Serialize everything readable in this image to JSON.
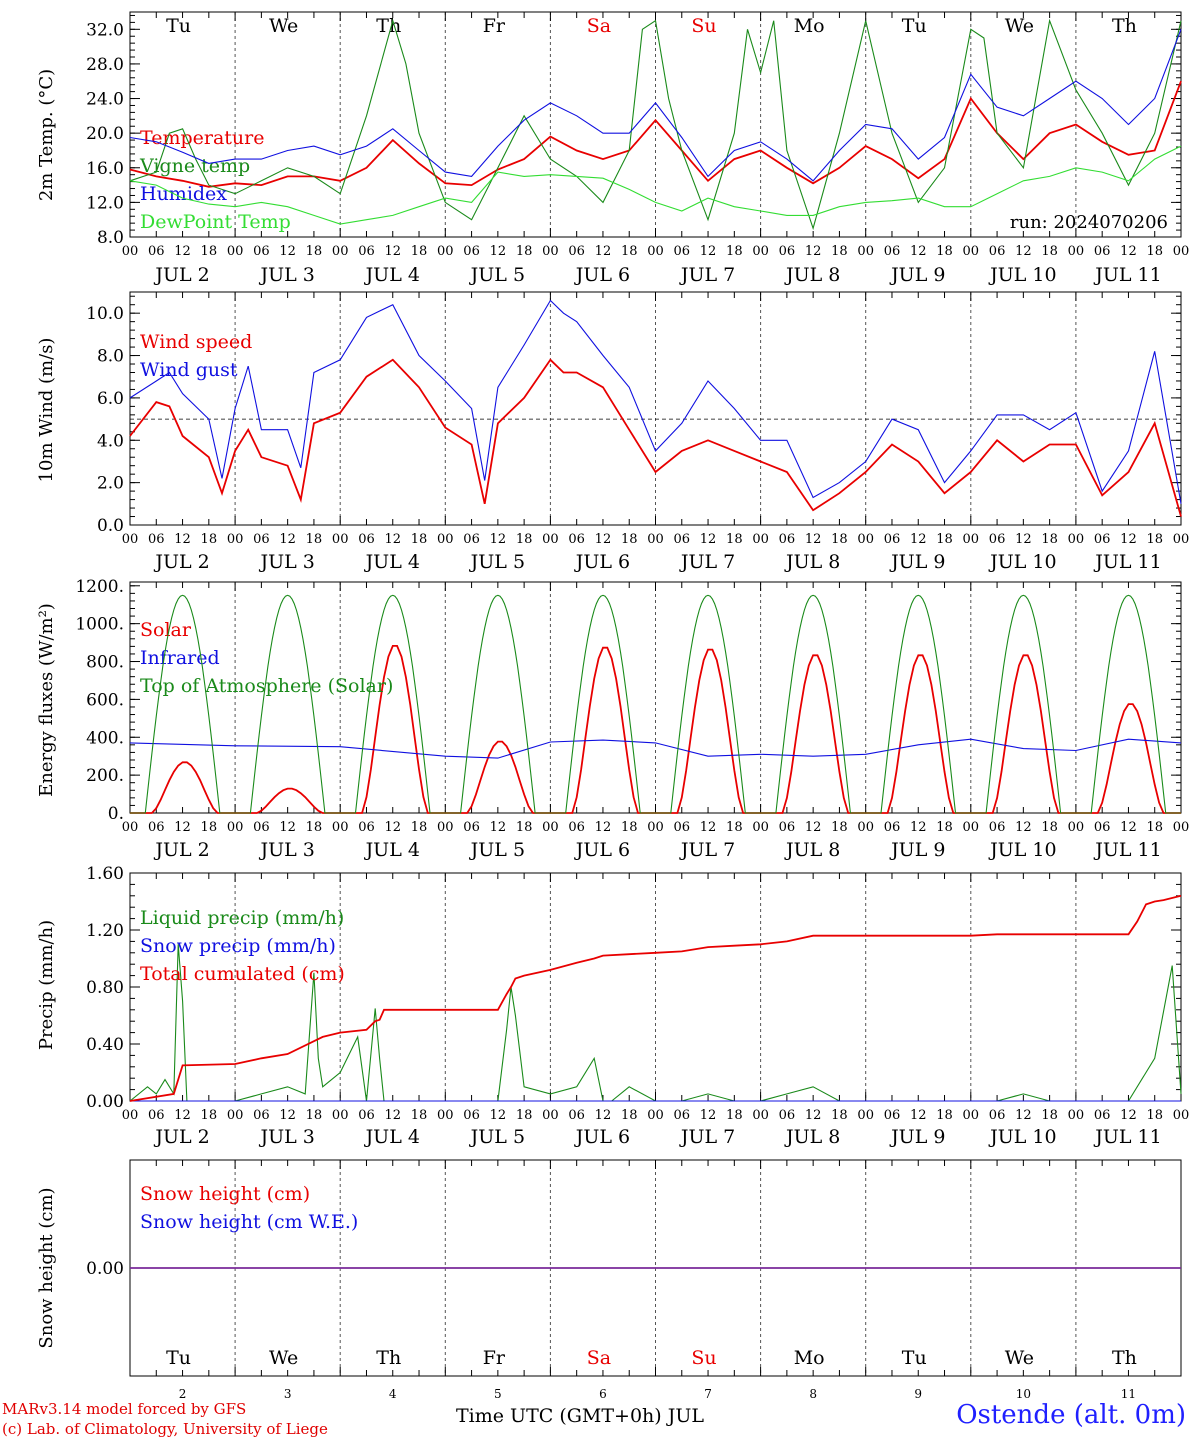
{
  "meta": {
    "run_label": "run: 2024070206",
    "station": "Ostende (alt. 0m)",
    "credit_line1": "MARv3.14 model forced by GFS",
    "credit_line2": "(c) Lab. of Climatology, University of Liege",
    "x_axis_title": "Time UTC (GMT+0h) JUL"
  },
  "days": [
    {
      "abbr": "Tu",
      "date": "JUL  2",
      "num": "2",
      "weekend": false
    },
    {
      "abbr": "We",
      "date": "JUL  3",
      "num": "3",
      "weekend": false
    },
    {
      "abbr": "Th",
      "date": "JUL  4",
      "num": "4",
      "weekend": false
    },
    {
      "abbr": "Fr",
      "date": "JUL  5",
      "num": "5",
      "weekend": false
    },
    {
      "abbr": "Sa",
      "date": "JUL  6",
      "num": "6",
      "weekend": true
    },
    {
      "abbr": "Su",
      "date": "JUL  7",
      "num": "7",
      "weekend": true
    },
    {
      "abbr": "Mo",
      "date": "JUL  8",
      "num": "8",
      "weekend": false
    },
    {
      "abbr": "Tu",
      "date": "JUL  9",
      "num": "9",
      "weekend": false
    },
    {
      "abbr": "We",
      "date": "JUL 10",
      "num": "10",
      "weekend": false
    },
    {
      "abbr": "Th",
      "date": "JUL 11",
      "num": "11",
      "weekend": false
    }
  ],
  "hour_ticks": [
    "00",
    "06",
    "12",
    "18"
  ],
  "colors": {
    "red": "#e80000",
    "green": "#1a8a1a",
    "blue": "#1010e0",
    "lightgreen": "#33dd33",
    "weekend": "#e80000",
    "snowline": "#7a2a9a"
  },
  "chart_data": [
    {
      "type": "line",
      "ylabel": "2m Temp. (°C)",
      "ylim": [
        8,
        34
      ],
      "yticks": [
        "8.0",
        "12.0",
        "16.0",
        "20.0",
        "24.0",
        "28.0",
        "32.0"
      ],
      "x_units": "hours since JUL 2 00 UTC",
      "series": [
        {
          "name": "Temperature",
          "color": "red",
          "x": [
            0,
            6,
            12,
            18,
            24,
            30,
            36,
            42,
            48,
            54,
            60,
            66,
            72,
            78,
            84,
            90,
            96,
            102,
            108,
            114,
            120,
            126,
            132,
            138,
            144,
            150,
            156,
            162,
            168,
            174,
            180,
            186,
            192,
            198,
            204,
            210,
            216,
            222,
            228,
            234,
            240
          ],
          "values": [
            15.8,
            15,
            14.5,
            13.8,
            14.2,
            14,
            15,
            15,
            14.5,
            16,
            19.2,
            16.5,
            14.2,
            14,
            15.8,
            17,
            19.6,
            18,
            17,
            18,
            21.5,
            18,
            14.5,
            17,
            18,
            16,
            14.2,
            16,
            18.5,
            17,
            14.8,
            17,
            24,
            20,
            17,
            20,
            21,
            19,
            17.5,
            18,
            26
          ]
        },
        {
          "name": "Vigne temp",
          "color": "green",
          "x": [
            0,
            6,
            9,
            12,
            15,
            18,
            24,
            30,
            36,
            42,
            48,
            54,
            60,
            63,
            66,
            72,
            78,
            84,
            90,
            96,
            102,
            108,
            114,
            117,
            120,
            123,
            126,
            132,
            138,
            141,
            144,
            147,
            150,
            156,
            162,
            168,
            174,
            180,
            186,
            192,
            195,
            198,
            204,
            210,
            216,
            222,
            228,
            234,
            240
          ],
          "values": [
            14.5,
            15.5,
            20,
            20.5,
            17,
            14,
            13,
            14.5,
            16,
            15,
            13,
            22,
            33,
            28,
            20,
            12,
            10,
            16,
            22,
            17,
            15,
            12,
            18,
            32,
            33,
            24,
            18,
            10,
            20,
            32,
            27,
            33,
            18,
            9,
            20,
            33,
            20,
            12,
            16,
            32,
            31,
            20,
            16,
            33,
            25,
            20,
            14,
            20,
            33
          ]
        },
        {
          "name": "Humidex",
          "color": "blue",
          "x": [
            0,
            6,
            12,
            18,
            24,
            30,
            36,
            42,
            48,
            54,
            60,
            66,
            72,
            78,
            84,
            90,
            96,
            102,
            108,
            114,
            120,
            126,
            132,
            138,
            144,
            150,
            156,
            162,
            168,
            174,
            180,
            186,
            192,
            198,
            204,
            210,
            216,
            222,
            228,
            234,
            240
          ],
          "values": [
            19.5,
            19,
            17.8,
            16.5,
            17,
            17,
            18,
            18.5,
            17.5,
            18.5,
            20.5,
            18,
            15.5,
            15,
            18.5,
            21.5,
            23.5,
            22,
            20,
            20,
            23.5,
            19.5,
            15,
            18,
            19,
            17,
            14.5,
            18,
            21,
            20.5,
            17,
            19.5,
            26.8,
            23,
            22,
            24,
            26,
            24,
            21,
            24,
            32
          ]
        },
        {
          "name": "DewPoint Temp",
          "color": "lightgreen",
          "x": [
            0,
            6,
            12,
            18,
            24,
            30,
            36,
            42,
            48,
            54,
            60,
            66,
            72,
            78,
            84,
            90,
            96,
            102,
            108,
            114,
            120,
            126,
            132,
            138,
            144,
            150,
            156,
            162,
            168,
            174,
            180,
            186,
            192,
            198,
            204,
            210,
            216,
            222,
            228,
            234,
            240
          ],
          "values": [
            14.5,
            14,
            12.5,
            11.8,
            11.5,
            12,
            11.5,
            10.5,
            9.5,
            10,
            10.5,
            11.5,
            12.5,
            12,
            15.5,
            15,
            15.2,
            15,
            14.8,
            13.5,
            12,
            11,
            12.5,
            11.5,
            11,
            10.5,
            10.5,
            11.5,
            12,
            12.2,
            12.5,
            11.5,
            11.5,
            13,
            14.5,
            15,
            16,
            15.5,
            14.5,
            17,
            18.5
          ]
        }
      ]
    },
    {
      "type": "line",
      "ylabel": "10m Wind (m/s)",
      "ylim": [
        0,
        11
      ],
      "yticks": [
        "0.0",
        "2.0",
        "4.0",
        "6.0",
        "8.0",
        "10.0"
      ],
      "reference_line": 5,
      "x_units": "hours since JUL 2 00 UTC",
      "series": [
        {
          "name": "Wind speed",
          "color": "red",
          "x": [
            0,
            6,
            9,
            12,
            18,
            21,
            24,
            27,
            30,
            36,
            39,
            42,
            48,
            54,
            60,
            66,
            72,
            78,
            81,
            84,
            90,
            96,
            99,
            102,
            108,
            114,
            120,
            126,
            132,
            138,
            144,
            150,
            156,
            162,
            168,
            174,
            180,
            186,
            192,
            198,
            204,
            210,
            216,
            222,
            228,
            234,
            240
          ],
          "values": [
            4.2,
            5.8,
            5.6,
            4.2,
            3.2,
            1.5,
            3.5,
            4.5,
            3.2,
            2.8,
            1.2,
            4.8,
            5.3,
            7,
            7.8,
            6.5,
            4.6,
            3.8,
            1,
            4.8,
            6,
            7.8,
            7.2,
            7.2,
            6.5,
            4.5,
            2.5,
            3.5,
            4,
            3.5,
            3,
            2.5,
            0.7,
            1.5,
            2.5,
            3.8,
            3,
            1.5,
            2.5,
            4,
            3,
            3.8,
            3.8,
            1.4,
            2.5,
            4.8,
            0.4
          ]
        },
        {
          "name": "Wind gust",
          "color": "blue",
          "x": [
            0,
            6,
            9,
            12,
            18,
            21,
            24,
            27,
            30,
            36,
            39,
            42,
            48,
            54,
            60,
            66,
            72,
            78,
            81,
            84,
            90,
            96,
            99,
            102,
            108,
            114,
            120,
            126,
            132,
            138,
            144,
            150,
            156,
            162,
            168,
            174,
            180,
            186,
            192,
            198,
            204,
            210,
            216,
            222,
            228,
            234,
            240
          ],
          "values": [
            6,
            6.8,
            7.2,
            6.2,
            5,
            2.2,
            5.5,
            7.5,
            4.5,
            4.5,
            2.7,
            7.2,
            7.8,
            9.8,
            10.4,
            8,
            6.8,
            5.5,
            2.1,
            6.5,
            8.5,
            10.6,
            10,
            9.6,
            8,
            6.5,
            3.5,
            4.8,
            6.8,
            5.5,
            4,
            4,
            1.3,
            2,
            3,
            5,
            4.5,
            2,
            3.5,
            5.2,
            5.2,
            4.5,
            5.3,
            1.6,
            3.5,
            8.2,
            1
          ]
        }
      ]
    },
    {
      "type": "line",
      "ylabel": "Energy fluxes (W/m²)",
      "ylim": [
        0,
        1200
      ],
      "yticks": [
        "0.",
        "200.",
        "400.",
        "600.",
        "800.",
        "1000.",
        "1200."
      ],
      "x_units": "hours since JUL 2 00 UTC",
      "series": [
        {
          "name": "Solar",
          "color": "red",
          "diurnal_peaks_wm2": [
            270,
            130,
            890,
            380,
            880,
            870,
            840,
            840,
            840,
            580
          ]
        },
        {
          "name": "Infrared",
          "color": "blue",
          "x": [
            0,
            24,
            48,
            72,
            84,
            96,
            108,
            120,
            132,
            144,
            156,
            168,
            180,
            192,
            204,
            216,
            228,
            240
          ],
          "values": [
            370,
            355,
            350,
            300,
            290,
            375,
            385,
            370,
            300,
            310,
            300,
            310,
            360,
            390,
            340,
            330,
            390,
            370
          ]
        },
        {
          "name": "Top of Atmosphere (Solar)",
          "color": "green",
          "diurnal_peak_wm2": 1150,
          "daylight_hours_utc": [
            3.5,
            20.5
          ]
        }
      ]
    },
    {
      "type": "line",
      "ylabel": "Precip (mm/h)",
      "ylim": [
        0,
        1.6
      ],
      "yticks": [
        "0.00",
        "0.40",
        "0.80",
        "1.20",
        "1.60"
      ],
      "x_units": "hours since JUL 2 00 UTC",
      "series": [
        {
          "name": "Liquid precip (mm/h)",
          "color": "green",
          "x": [
            0,
            4,
            6,
            8,
            10,
            11,
            12,
            13,
            14,
            18,
            24,
            30,
            36,
            40,
            42,
            43,
            44,
            48,
            52,
            54,
            56,
            57,
            58,
            60,
            66,
            72,
            78,
            84,
            86,
            87,
            88,
            90,
            96,
            102,
            106,
            108,
            110,
            114,
            120,
            126,
            132,
            138,
            144,
            150,
            156,
            162,
            168,
            174,
            180,
            186,
            192,
            198,
            204,
            210,
            216,
            222,
            228,
            234,
            238,
            240
          ],
          "values": [
            0,
            0.1,
            0.05,
            0.15,
            0.05,
            1.1,
            0.7,
            0,
            0,
            0,
            0,
            0.05,
            0.1,
            0.05,
            0.9,
            0.3,
            0.1,
            0.2,
            0.45,
            0,
            0.65,
            0.3,
            0,
            0,
            0,
            0,
            0,
            0,
            0.5,
            0.8,
            0.6,
            0.1,
            0.05,
            0.1,
            0.3,
            0,
            0,
            0.1,
            0,
            0,
            0.05,
            0,
            0,
            0.05,
            0.1,
            0,
            0,
            0,
            0,
            0,
            0,
            0,
            0.05,
            0,
            0,
            0,
            0,
            0.3,
            0.95,
            0.05
          ]
        },
        {
          "name": "Snow precip (mm/h)",
          "color": "blue",
          "x": [
            0,
            240
          ],
          "values": [
            0,
            0
          ]
        },
        {
          "name": "Total cumulated (cm)",
          "color": "red",
          "x": [
            0,
            10,
            11,
            12,
            24,
            30,
            36,
            42,
            44,
            48,
            54,
            56,
            57,
            58,
            60,
            66,
            72,
            78,
            84,
            86,
            87,
            88,
            90,
            96,
            102,
            106,
            108,
            114,
            120,
            126,
            132,
            138,
            144,
            150,
            156,
            162,
            168,
            174,
            180,
            186,
            192,
            198,
            204,
            210,
            216,
            222,
            228,
            230,
            232,
            234,
            236,
            240
          ],
          "values": [
            0,
            0.05,
            0.15,
            0.25,
            0.26,
            0.3,
            0.33,
            0.42,
            0.45,
            0.48,
            0.5,
            0.56,
            0.57,
            0.64,
            0.64,
            0.64,
            0.64,
            0.64,
            0.64,
            0.75,
            0.8,
            0.86,
            0.88,
            0.92,
            0.97,
            1.0,
            1.02,
            1.03,
            1.04,
            1.05,
            1.08,
            1.09,
            1.1,
            1.12,
            1.16,
            1.16,
            1.16,
            1.16,
            1.16,
            1.16,
            1.16,
            1.17,
            1.17,
            1.17,
            1.17,
            1.17,
            1.17,
            1.26,
            1.38,
            1.4,
            1.41,
            1.44
          ]
        }
      ]
    },
    {
      "type": "line",
      "ylabel": "Snow height (cm)",
      "yticks": [
        "0.00"
      ],
      "x_units": "hours since JUL 2 00 UTC",
      "series": [
        {
          "name": "Snow height (cm)",
          "color": "red",
          "x": [
            0,
            240
          ],
          "values": [
            0,
            0
          ]
        },
        {
          "name": "Snow height (cm W.E.)",
          "color": "blue",
          "x": [
            0,
            240
          ],
          "values": [
            0,
            0
          ]
        }
      ]
    }
  ]
}
